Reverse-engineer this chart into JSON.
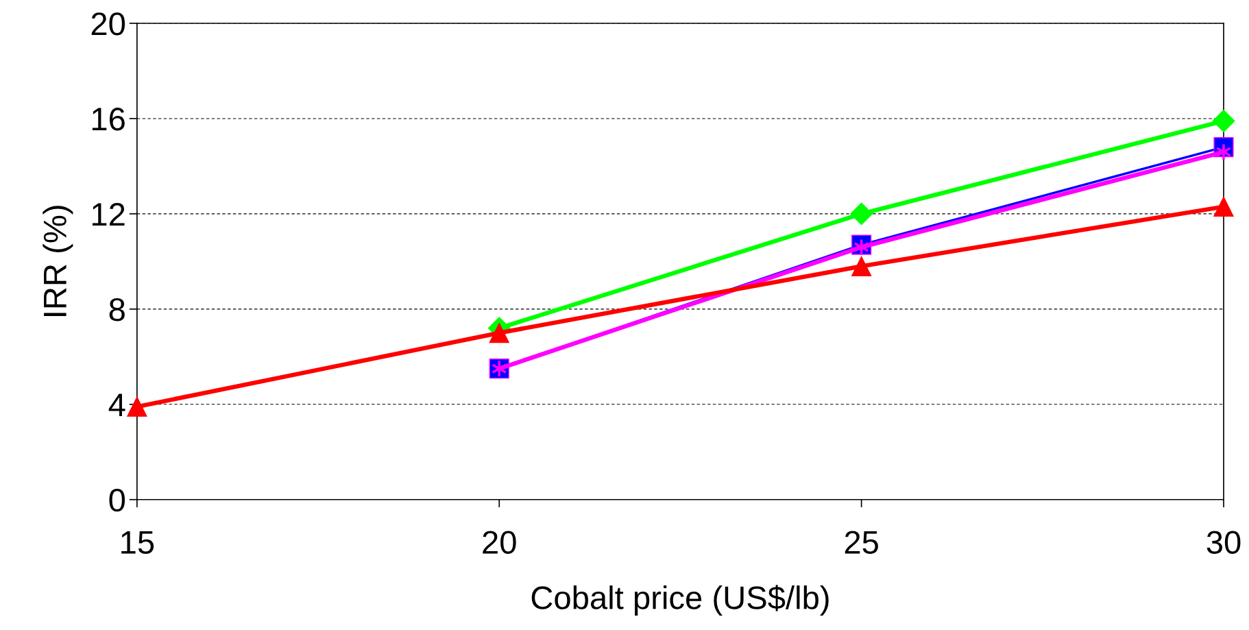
{
  "chart_data": {
    "type": "line",
    "xlabel": "Cobalt price (US$/lb)",
    "ylabel": "IRR (%)",
    "xlim": [
      15,
      30
    ],
    "xticks": [
      15,
      20,
      25,
      30
    ],
    "ylim": [
      0,
      20
    ],
    "yticks": [
      0,
      4,
      8,
      12,
      16,
      20
    ],
    "grid": "y",
    "legend": false,
    "series": [
      {
        "color": "#00ff00",
        "marker": "diamond",
        "x": [
          20,
          25,
          30
        ],
        "values": [
          7.2,
          12.0,
          15.9
        ]
      },
      {
        "color": "#0000ff",
        "marker": "square",
        "x": [
          20,
          25,
          30
        ],
        "values": [
          5.5,
          10.7,
          14.8
        ]
      },
      {
        "color": "#ff00ff",
        "marker": "cross",
        "x": [
          20,
          25,
          30
        ],
        "values": [
          5.5,
          10.6,
          14.6
        ]
      },
      {
        "color": "#ff0000",
        "marker": "triangle",
        "x": [
          15,
          20,
          25,
          30
        ],
        "values": [
          3.9,
          7.0,
          9.8,
          12.3
        ]
      }
    ]
  }
}
